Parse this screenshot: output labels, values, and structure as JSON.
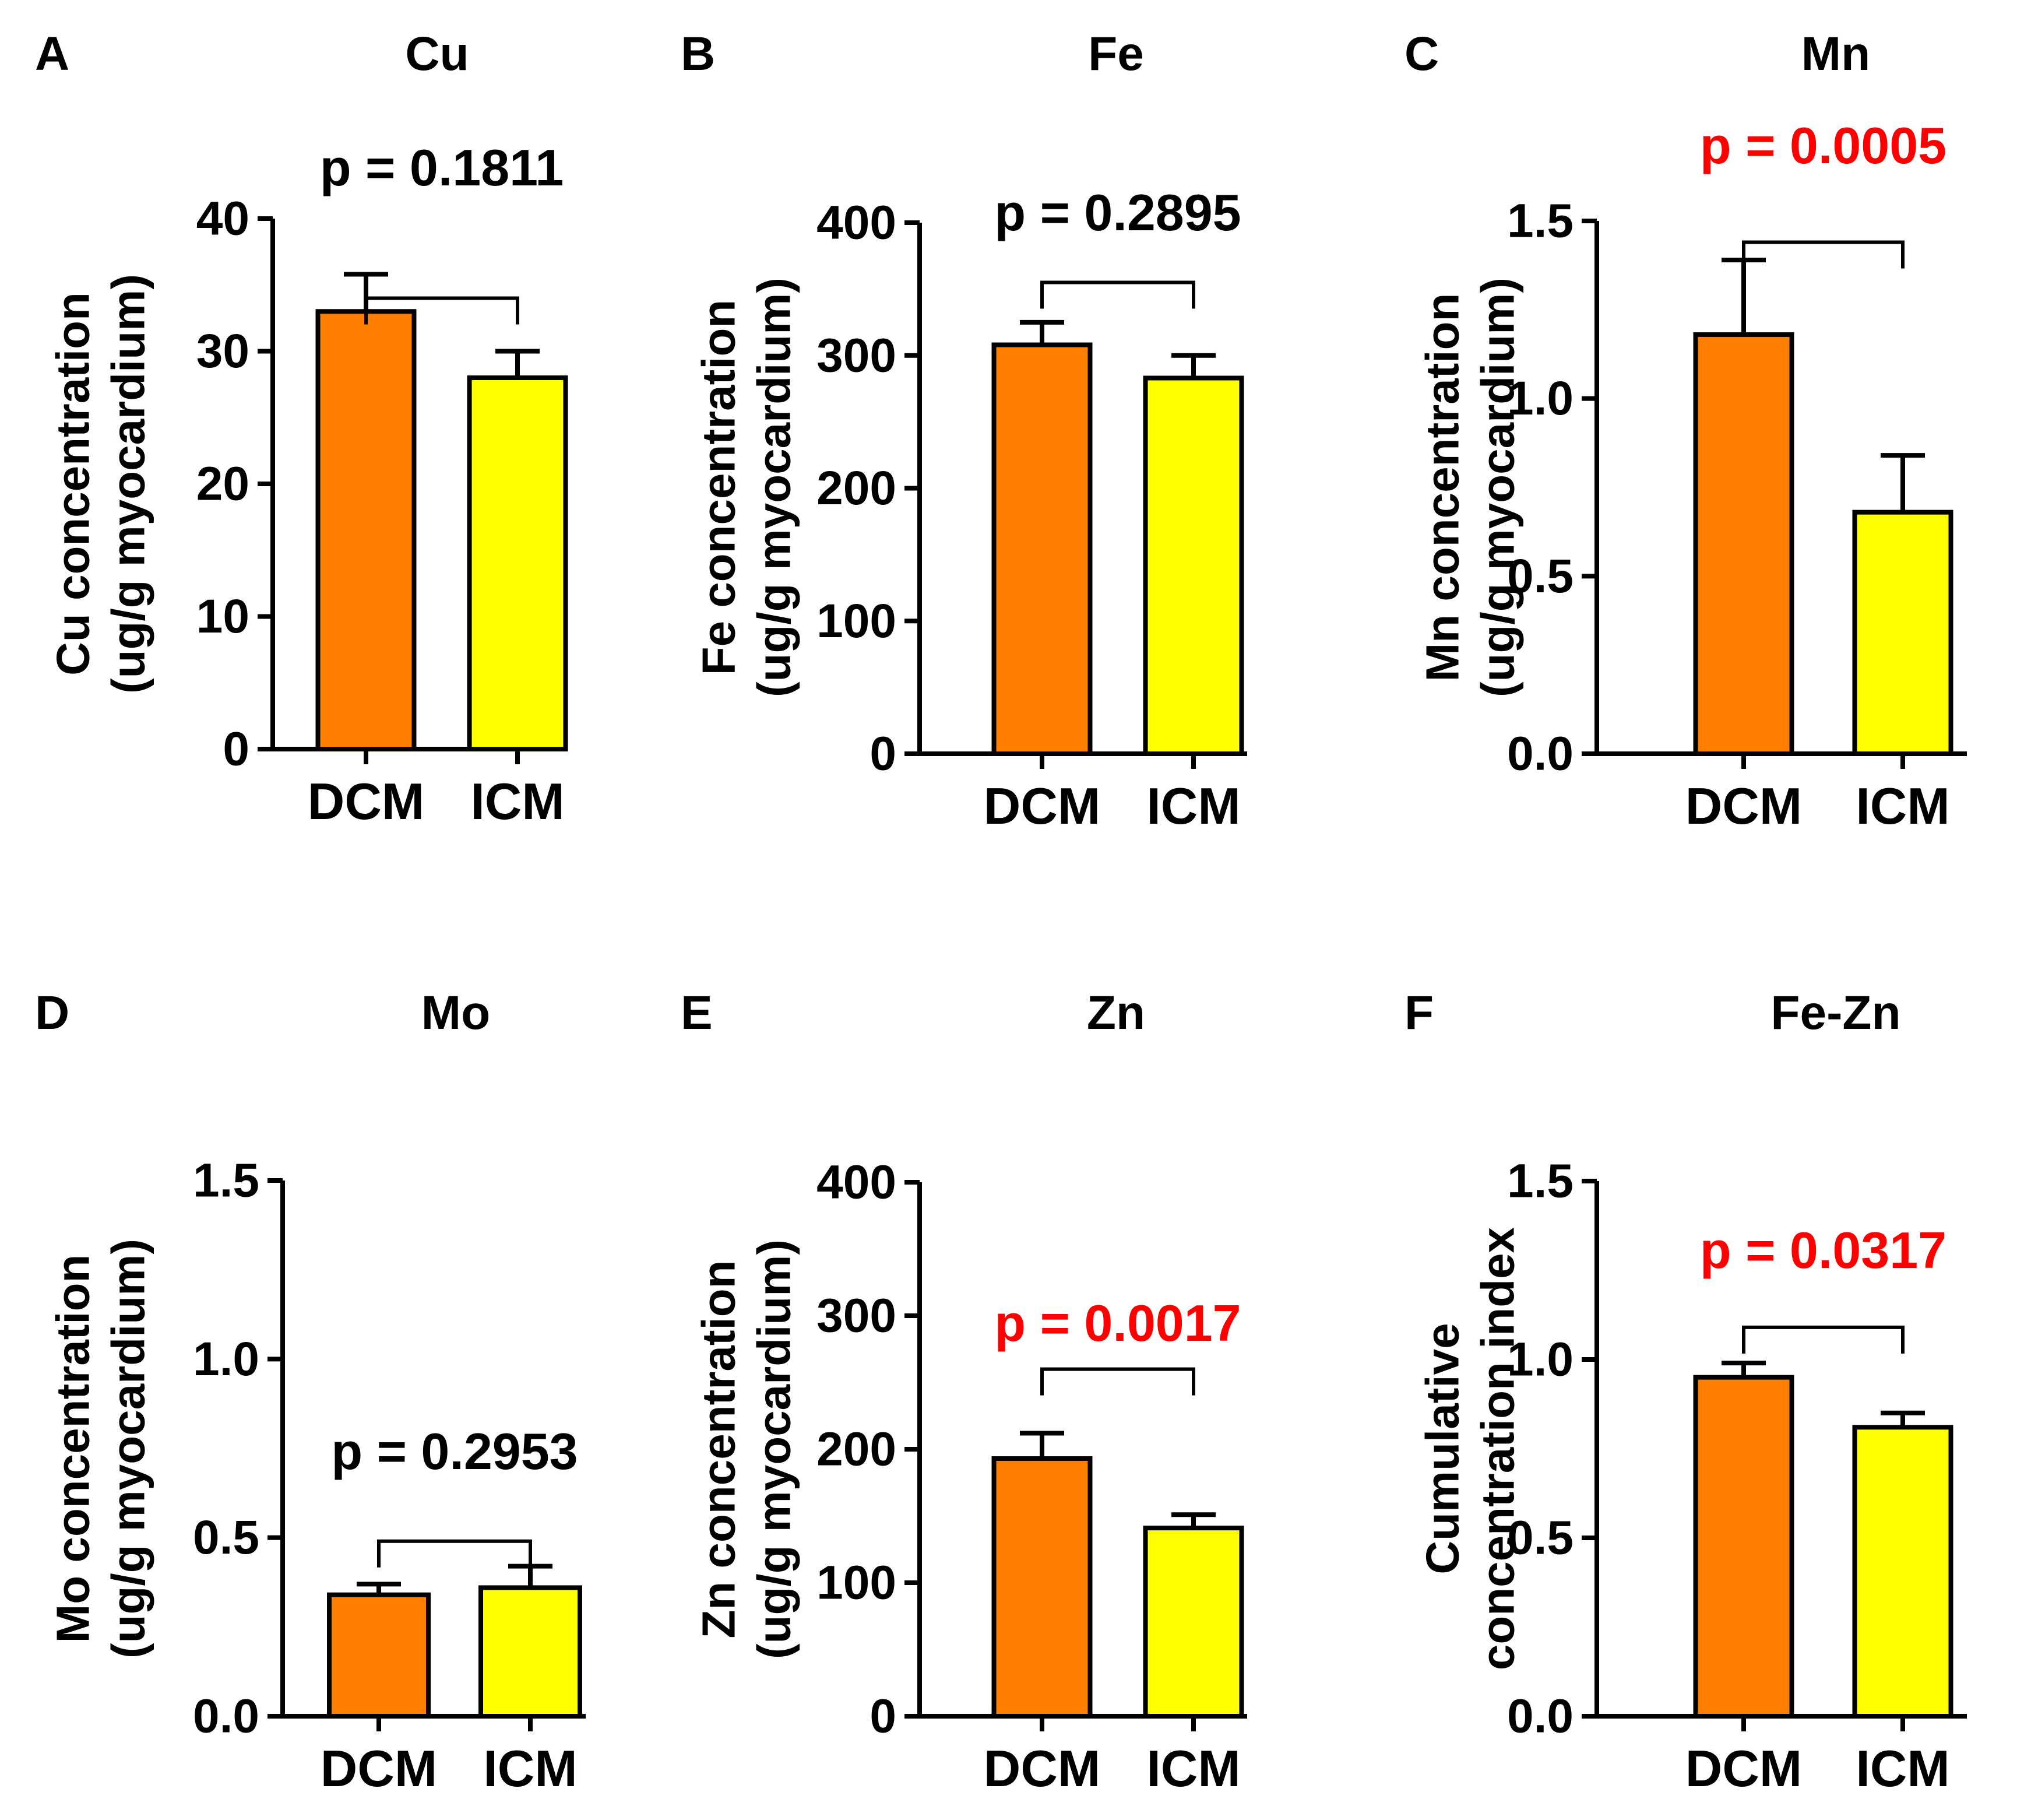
{
  "figure": {
    "background": "#ffffff"
  },
  "styles": {
    "dcm_color": "#ff7f00",
    "icm_color": "#ffff00",
    "sig_color": "#ff0000",
    "text_color": "#000000"
  },
  "chart_data": [
    {
      "panel": "A",
      "title": "Cu",
      "type": "bar",
      "categories": [
        "DCM",
        "ICM"
      ],
      "values": [
        33,
        28
      ],
      "errors": [
        2.8,
        2.0
      ],
      "ylim": [
        0,
        40
      ],
      "yticks": [
        0,
        10,
        20,
        30,
        40
      ],
      "tick_labels": [
        "0",
        "10",
        "20",
        "30",
        "40"
      ],
      "ylabel_lines": [
        "Cu concentration",
        "(ug/g myocardium)"
      ],
      "p_label": "p = 0.1811",
      "significant": false,
      "bracket_y": 34
    },
    {
      "panel": "B",
      "title": "Fe",
      "type": "bar",
      "categories": [
        "DCM",
        "ICM"
      ],
      "values": [
        308,
        283
      ],
      "errors": [
        17,
        17
      ],
      "ylim": [
        0,
        400
      ],
      "yticks": [
        0,
        100,
        200,
        300,
        400
      ],
      "tick_labels": [
        "0",
        "100",
        "200",
        "300",
        "400"
      ],
      "ylabel_lines": [
        "Fe concentration",
        "(ug/g myocardium)"
      ],
      "p_label": "p = 0.2895",
      "significant": false,
      "bracket_y": 355
    },
    {
      "panel": "C",
      "title": "Mn",
      "type": "bar",
      "categories": [
        "DCM",
        "ICM"
      ],
      "values": [
        1.18,
        0.68
      ],
      "errors": [
        0.21,
        0.16
      ],
      "ylim": [
        0,
        1.5
      ],
      "yticks": [
        0,
        0.5,
        1.0,
        1.5
      ],
      "tick_labels": [
        "0.0",
        "0.5",
        "1.0",
        "1.5"
      ],
      "ylabel_lines": [
        "Mn concentration",
        "(ug/g myocardium)"
      ],
      "p_label": "p = 0.0005",
      "significant": true,
      "bracket_y": 1.44
    },
    {
      "panel": "D",
      "title": "Mo",
      "type": "bar",
      "categories": [
        "DCM",
        "ICM"
      ],
      "values": [
        0.34,
        0.36
      ],
      "errors": [
        0.03,
        0.06
      ],
      "ylim": [
        0,
        1.5
      ],
      "yticks": [
        0,
        0.5,
        1.0,
        1.5
      ],
      "tick_labels": [
        "0.0",
        "0.5",
        "1.0",
        "1.5"
      ],
      "ylabel_lines": [
        "Mo concentration",
        "(ug/g myocardium)"
      ],
      "p_label": "p = 0.2953",
      "significant": false,
      "bracket_y": 0.49
    },
    {
      "panel": "E",
      "title": "Zn",
      "type": "bar",
      "categories": [
        "DCM",
        "ICM"
      ],
      "values": [
        193,
        141
      ],
      "errors": [
        19,
        10
      ],
      "ylim": [
        0,
        400
      ],
      "yticks": [
        0,
        100,
        200,
        300,
        400
      ],
      "tick_labels": [
        "0",
        "100",
        "200",
        "300",
        "400"
      ],
      "ylabel_lines": [
        "Zn concentration",
        "(ug/g myocardium)"
      ],
      "p_label": "p = 0.0017",
      "significant": true,
      "bracket_y": 260
    },
    {
      "panel": "F",
      "title": "Fe-Zn",
      "type": "bar",
      "categories": [
        "DCM",
        "ICM"
      ],
      "values": [
        0.95,
        0.81
      ],
      "errors": [
        0.04,
        0.04
      ],
      "ylim": [
        0,
        1.5
      ],
      "yticks": [
        0,
        0.5,
        1.0,
        1.5
      ],
      "tick_labels": [
        "0.0",
        "0.5",
        "1.0",
        "1.5"
      ],
      "ylabel_lines": [
        "Cumulative",
        "concentration index"
      ],
      "p_label": "p = 0.0317",
      "significant": true,
      "bracket_y": 1.09
    }
  ]
}
